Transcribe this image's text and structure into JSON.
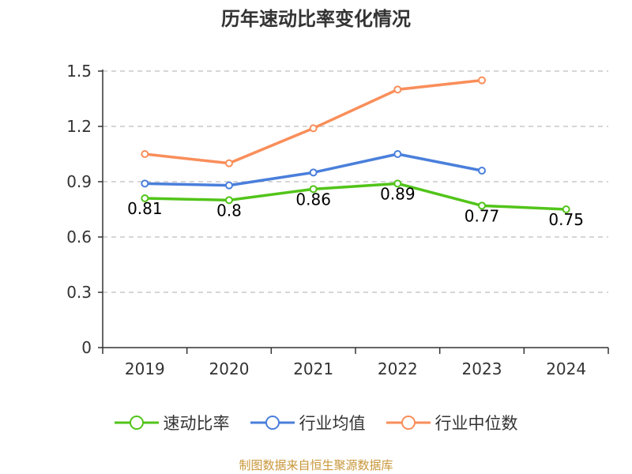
{
  "title": "历年速动比率变化情况",
  "source": "制图数据来自恒生聚源数据库",
  "chart_data": {
    "type": "line",
    "title": "历年速动比率变化情况",
    "xlabel": "",
    "ylabel": "",
    "categories": [
      "2019",
      "2020",
      "2021",
      "2022",
      "2023",
      "2024"
    ],
    "ylim": [
      0,
      1.5
    ],
    "yticks": [
      "0",
      "0.3",
      "0.6",
      "0.9",
      "1.2",
      "1.5"
    ],
    "grid": true,
    "legend_position": "bottom",
    "series": [
      {
        "name": "速动比率",
        "color": "#52c41a",
        "values": [
          0.81,
          0.8,
          0.86,
          0.89,
          0.77,
          0.75
        ],
        "labels": [
          "0.81",
          "0.8",
          "0.86",
          "0.89",
          "0.77",
          "0.75"
        ]
      },
      {
        "name": "行业均值",
        "color": "#4a7fdb",
        "values": [
          0.89,
          0.88,
          0.95,
          1.05,
          0.96,
          null
        ]
      },
      {
        "name": "行业中位数",
        "color": "#f98e5a",
        "values": [
          1.05,
          1.0,
          1.19,
          1.4,
          1.45,
          null
        ]
      }
    ]
  }
}
